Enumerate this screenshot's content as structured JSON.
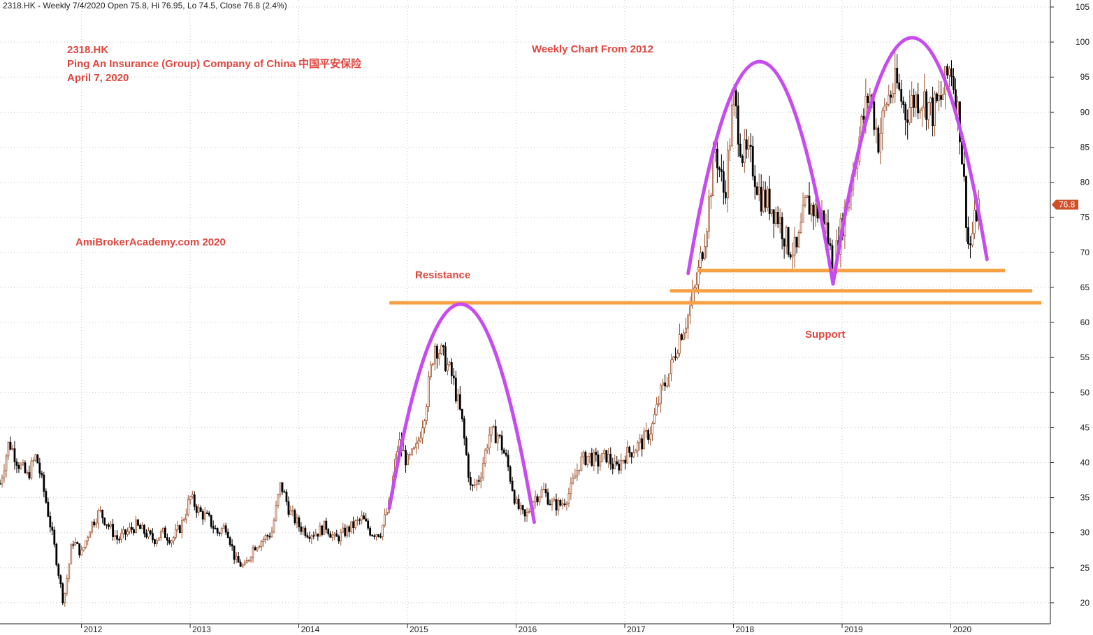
{
  "header": {
    "text": "2318.HK - Weekly 7/4/2020 Open 75.8, Hi 76.95, Lo 74.5, Close 76.8 (2.4%)"
  },
  "annotations": {
    "ticker": "2318.HK",
    "company": "Ping An Insurance (Group) Company of China   中国平安保险",
    "date": "April 7, 2020",
    "chart_title": "Weekly Chart From  2012",
    "watermark": "AmiBrokerAcademy.com   2020",
    "resistance": "Resistance",
    "support": "Support"
  },
  "price_tag": "76.8",
  "colors": {
    "arc": "#c64cf0",
    "level": "#f5a043",
    "label": "#e0463e",
    "price_tag": "#d0502a",
    "candle_up": "#a0522d",
    "candle_down": "#000000"
  },
  "chart_data": {
    "type": "candlestick",
    "x_ticks": [
      "2012",
      "2013",
      "2014",
      "2015",
      "2016",
      "2017",
      "2018",
      "2019",
      "2020"
    ],
    "y_ticks": [
      20,
      25,
      30,
      35,
      40,
      45,
      50,
      55,
      60,
      65,
      70,
      75,
      80,
      85,
      90,
      95,
      100,
      105
    ],
    "ylim": [
      17,
      106
    ],
    "xlim": [
      "2011-04",
      "2020-12"
    ],
    "last_close": 76.8,
    "grid": true,
    "price_path": [
      [
        "2011-04",
        37
      ],
      [
        "2011-05",
        43
      ],
      [
        "2011-06",
        40
      ],
      [
        "2011-07",
        38
      ],
      [
        "2011-08",
        41
      ],
      [
        "2011-09",
        35
      ],
      [
        "2011-10",
        28
      ],
      [
        "2011-11",
        20
      ],
      [
        "2011-12",
        29
      ],
      [
        "2012-01",
        27
      ],
      [
        "2012-02",
        31
      ],
      [
        "2012-03",
        33
      ],
      [
        "2012-04",
        31
      ],
      [
        "2012-05",
        29
      ],
      [
        "2012-06",
        30
      ],
      [
        "2012-07",
        31
      ],
      [
        "2012-08",
        30
      ],
      [
        "2012-09",
        29
      ],
      [
        "2012-10",
        30
      ],
      [
        "2012-11",
        29
      ],
      [
        "2012-12",
        31
      ],
      [
        "2013-01",
        35
      ],
      [
        "2013-02",
        33
      ],
      [
        "2013-03",
        32
      ],
      [
        "2013-04",
        30
      ],
      [
        "2013-05",
        31
      ],
      [
        "2013-06",
        26
      ],
      [
        "2013-07",
        25
      ],
      [
        "2013-08",
        28
      ],
      [
        "2013-09",
        29
      ],
      [
        "2013-10",
        30
      ],
      [
        "2013-11",
        37
      ],
      [
        "2013-12",
        33
      ],
      [
        "2014-01",
        31
      ],
      [
        "2014-02",
        30
      ],
      [
        "2014-03",
        30
      ],
      [
        "2014-04",
        31
      ],
      [
        "2014-05",
        29
      ],
      [
        "2014-06",
        30
      ],
      [
        "2014-07",
        31
      ],
      [
        "2014-08",
        32
      ],
      [
        "2014-09",
        30
      ],
      [
        "2014-10",
        30
      ],
      [
        "2014-11",
        34
      ],
      [
        "2014-12",
        43
      ],
      [
        "2015-01",
        40
      ],
      [
        "2015-02",
        42
      ],
      [
        "2015-03",
        48
      ],
      [
        "2015-04",
        57
      ],
      [
        "2015-05",
        55
      ],
      [
        "2015-06",
        52
      ],
      [
        "2015-07",
        46
      ],
      [
        "2015-08",
        36
      ],
      [
        "2015-09",
        38
      ],
      [
        "2015-10",
        44
      ],
      [
        "2015-11",
        44
      ],
      [
        "2015-12",
        40
      ],
      [
        "2016-01",
        34
      ],
      [
        "2016-02",
        32
      ],
      [
        "2016-03",
        35
      ],
      [
        "2016-04",
        36
      ],
      [
        "2016-05",
        34
      ],
      [
        "2016-06",
        34
      ],
      [
        "2016-07",
        36
      ],
      [
        "2016-08",
        40
      ],
      [
        "2016-09",
        41
      ],
      [
        "2016-10",
        40
      ],
      [
        "2016-11",
        41
      ],
      [
        "2016-12",
        39
      ],
      [
        "2017-01",
        41
      ],
      [
        "2017-02",
        42
      ],
      [
        "2017-03",
        43
      ],
      [
        "2017-04",
        45
      ],
      [
        "2017-05",
        50
      ],
      [
        "2017-06",
        53
      ],
      [
        "2017-07",
        58
      ],
      [
        "2017-08",
        61
      ],
      [
        "2017-09",
        66
      ],
      [
        "2017-10",
        74
      ],
      [
        "2017-11",
        85
      ],
      [
        "2017-12",
        78
      ],
      [
        "2018-01",
        92
      ],
      [
        "2018-02",
        84
      ],
      [
        "2018-03",
        83
      ],
      [
        "2018-04",
        78
      ],
      [
        "2018-05",
        77
      ],
      [
        "2018-06",
        75
      ],
      [
        "2018-07",
        71
      ],
      [
        "2018-08",
        70
      ],
      [
        "2018-09",
        77
      ],
      [
        "2018-10",
        76
      ],
      [
        "2018-11",
        75
      ],
      [
        "2018-12",
        68
      ],
      [
        "2019-01",
        74
      ],
      [
        "2019-02",
        80
      ],
      [
        "2019-03",
        87
      ],
      [
        "2019-04",
        93
      ],
      [
        "2019-05",
        86
      ],
      [
        "2019-06",
        92
      ],
      [
        "2019-07",
        94
      ],
      [
        "2019-08",
        90
      ],
      [
        "2019-09",
        92
      ],
      [
        "2019-10",
        92
      ],
      [
        "2019-11",
        90
      ],
      [
        "2019-12",
        92
      ],
      [
        "2020-01",
        97
      ],
      [
        "2020-02",
        88
      ],
      [
        "2020-03",
        70
      ],
      [
        "2020-04",
        76.8
      ]
    ],
    "levels": [
      {
        "y": 62.8,
        "from": "2014-11",
        "to": "2020-11"
      },
      {
        "y": 64.5,
        "from": "2017-06",
        "to": "2020-10"
      },
      {
        "y": 67.4,
        "from": "2017-09",
        "to": "2020-07"
      }
    ],
    "arcs": [
      {
        "from": "2014-11",
        "to": "2016-03",
        "from_y": 33.5,
        "to_y": 31.5,
        "peak_y": 62.6
      },
      {
        "from": "2017-08",
        "to": "2018-12",
        "from_y": 67,
        "to_y": 65.5,
        "peak_y": 97.2
      },
      {
        "from": "2018-12",
        "to": "2020-05",
        "from_y": 65.5,
        "to_y": 69,
        "peak_y": 100.6
      }
    ]
  }
}
